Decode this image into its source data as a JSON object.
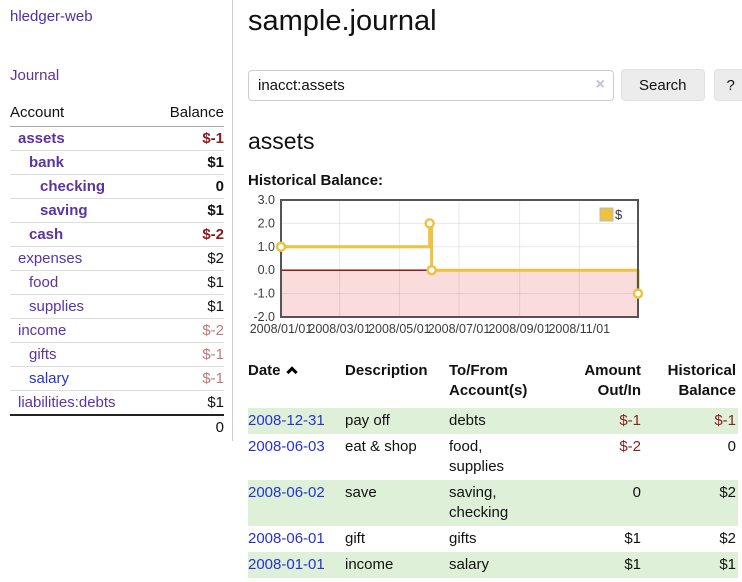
{
  "app": {
    "title": "hledger-web"
  },
  "sidebar": {
    "journal_link": "Journal",
    "headers": {
      "account": "Account",
      "balance": "Balance"
    },
    "accounts": [
      {
        "name": "assets",
        "balance": "$-1"
      },
      {
        "name": "bank",
        "balance": "$1"
      },
      {
        "name": "checking",
        "balance": "0"
      },
      {
        "name": "saving",
        "balance": "$1"
      },
      {
        "name": "cash",
        "balance": "$-2"
      },
      {
        "name": "expenses",
        "balance": "$2"
      },
      {
        "name": "food",
        "balance": "$1"
      },
      {
        "name": "supplies",
        "balance": "$1"
      },
      {
        "name": "income",
        "balance": "$-2"
      },
      {
        "name": "gifts",
        "balance": "$-1"
      },
      {
        "name": "salary",
        "balance": "$-1"
      },
      {
        "name": "liabilities:debts",
        "balance": "$1"
      }
    ],
    "total": "0"
  },
  "header": {
    "title": "sample.journal"
  },
  "search": {
    "value": "inacct:assets",
    "clear_icon": "×",
    "button_label": "Search",
    "help_label": "?"
  },
  "account_page": {
    "title": "assets",
    "chart_label": "Historical Balance:"
  },
  "chart_data": {
    "type": "line",
    "step": "after",
    "title": "Historical Balance",
    "series": [
      {
        "name": "$",
        "color": "#edc240",
        "points": [
          [
            "2008-01-01",
            1
          ],
          [
            "2008-06-01",
            2
          ],
          [
            "2008-06-03",
            0
          ],
          [
            "2008-12-31",
            -1
          ]
        ]
      }
    ],
    "xlim": [
      "2008-01-01",
      "2008-12-31"
    ],
    "ylim": [
      -2,
      3
    ],
    "yticks": [
      "3.0",
      "2.0",
      "1.0",
      "0.0",
      "-1.0",
      "-2.0"
    ],
    "ytick_values": [
      3,
      2,
      1,
      0,
      -1,
      -2
    ],
    "xticks": [
      "2008/01/01",
      "2008/03/01",
      "2008/05/01",
      "2008/07/01",
      "2008/09/01",
      "2008/11/01"
    ],
    "grid": true,
    "legend_position": "top-right",
    "negative_region_color": "#fbdcdc",
    "zero_line_color": "#8b0000",
    "border_color": "#545454"
  },
  "register": {
    "headers": {
      "date": "Date",
      "description": "Description",
      "accounts": "To/From Account(s)",
      "amount": "Amount Out/In",
      "balance": "Historical Balance"
    },
    "rows": [
      {
        "date": "2008-12-31",
        "description": "pay off",
        "accounts": "debts",
        "amount": "$-1",
        "balance": "$-1"
      },
      {
        "date": "2008-06-03",
        "description": "eat & shop",
        "accounts": "food, supplies",
        "amount": "$-2",
        "balance": "0"
      },
      {
        "date": "2008-06-02",
        "description": "save",
        "accounts": "saving, checking",
        "amount": "0",
        "balance": "$2"
      },
      {
        "date": "2008-06-01",
        "description": "gift",
        "accounts": "gifts",
        "amount": "$1",
        "balance": "$2"
      },
      {
        "date": "2008-01-01",
        "description": "income",
        "accounts": "salary",
        "amount": "$1",
        "balance": "$1"
      }
    ]
  }
}
